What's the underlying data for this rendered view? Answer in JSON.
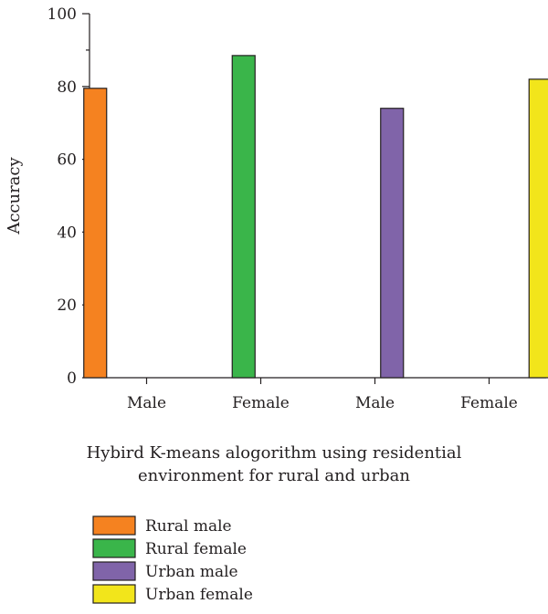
{
  "chart_data": {
    "type": "bar",
    "categories": [
      "Male",
      "Female",
      "Male",
      "Female"
    ],
    "series": [
      {
        "name": "Rural male",
        "values": [
          79.5,
          null,
          null,
          null
        ],
        "color": "#f58220"
      },
      {
        "name": "Rural female",
        "values": [
          null,
          88.5,
          null,
          null
        ],
        "color": "#3ab54a"
      },
      {
        "name": "Urban male",
        "values": [
          null,
          null,
          74,
          null
        ],
        "color": "#8064a9"
      },
      {
        "name": "Urban female",
        "values": [
          null,
          null,
          null,
          82
        ],
        "color": "#f2e51b"
      }
    ],
    "xlabel_lines": [
      "Hybird K-means alogorithm using residential",
      "environment for rural and urban"
    ],
    "ylabel": "Accuracy",
    "ylim": [
      0,
      100
    ],
    "yticks": [
      0,
      20,
      40,
      60,
      80,
      100
    ],
    "legend_position": "bottom-left",
    "grid": false
  }
}
